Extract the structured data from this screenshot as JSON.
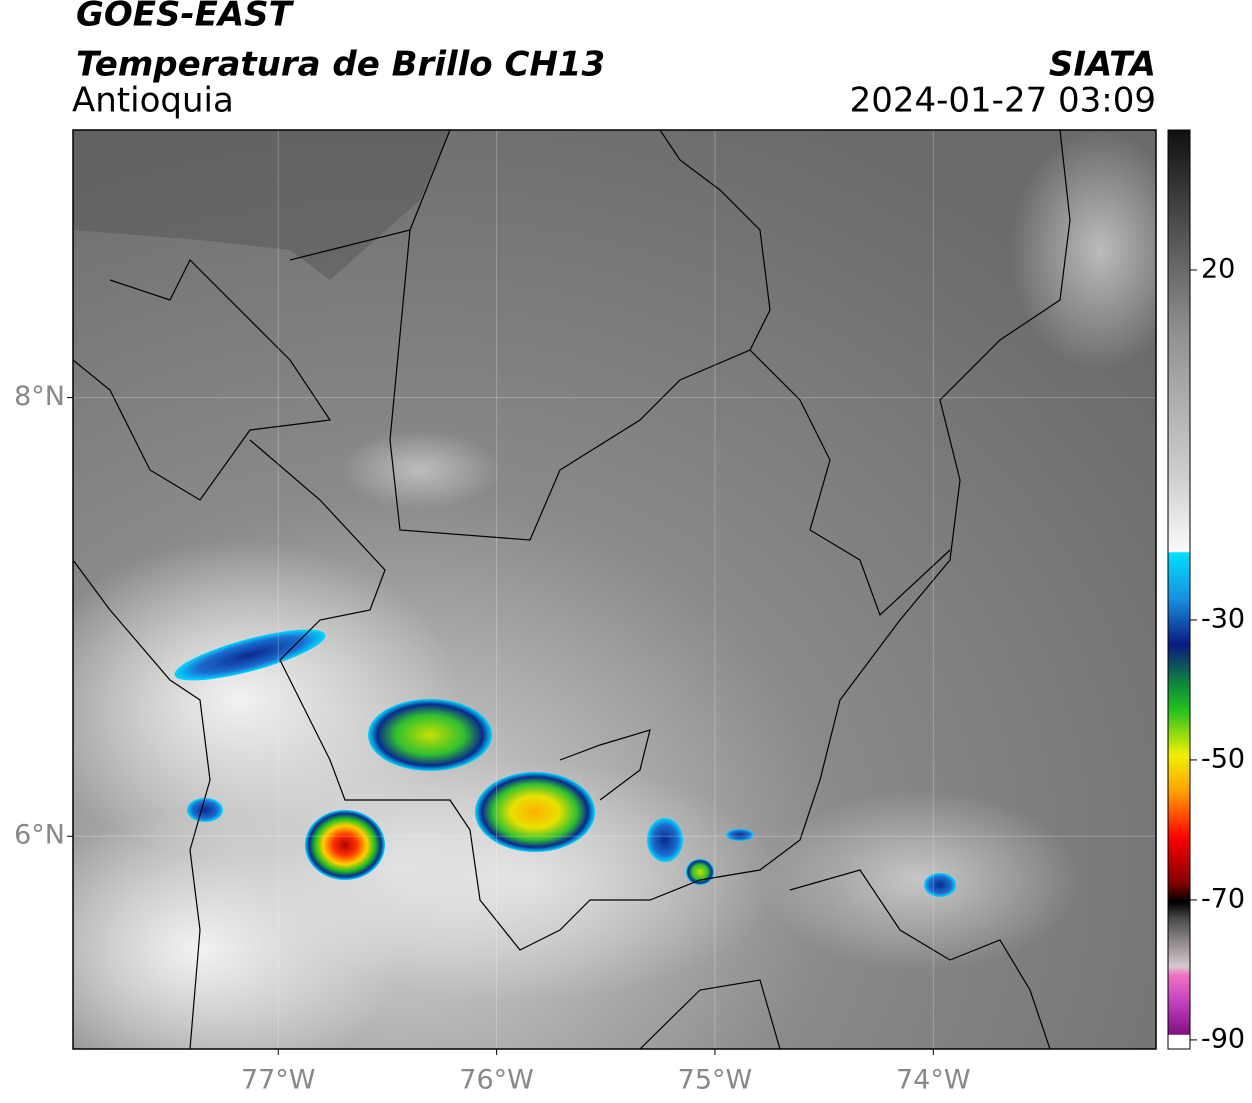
{
  "header": {
    "title": "GOES-EAST",
    "subtitle": "Temperatura de Brillo CH13",
    "region": "Antioquia",
    "source": "SIATA",
    "timestamp": "2024-01-27 03:09"
  },
  "map": {
    "xlim": [
      -77.94,
      -72.98
    ],
    "ylim": [
      5.03,
      9.22
    ],
    "xticks": [
      {
        "value": -77,
        "label": "77°W"
      },
      {
        "value": -76,
        "label": "76°W"
      },
      {
        "value": -75,
        "label": "75°W"
      },
      {
        "value": -74,
        "label": "74°W"
      }
    ],
    "yticks": [
      {
        "value": 8,
        "label": "8°N"
      },
      {
        "value": 6,
        "label": "6°N"
      }
    ],
    "grid": true
  },
  "colorbar": {
    "lim": [
      -91.3,
      40
    ],
    "ticks": [
      20,
      -30,
      -50,
      -70,
      -90
    ]
  }
}
